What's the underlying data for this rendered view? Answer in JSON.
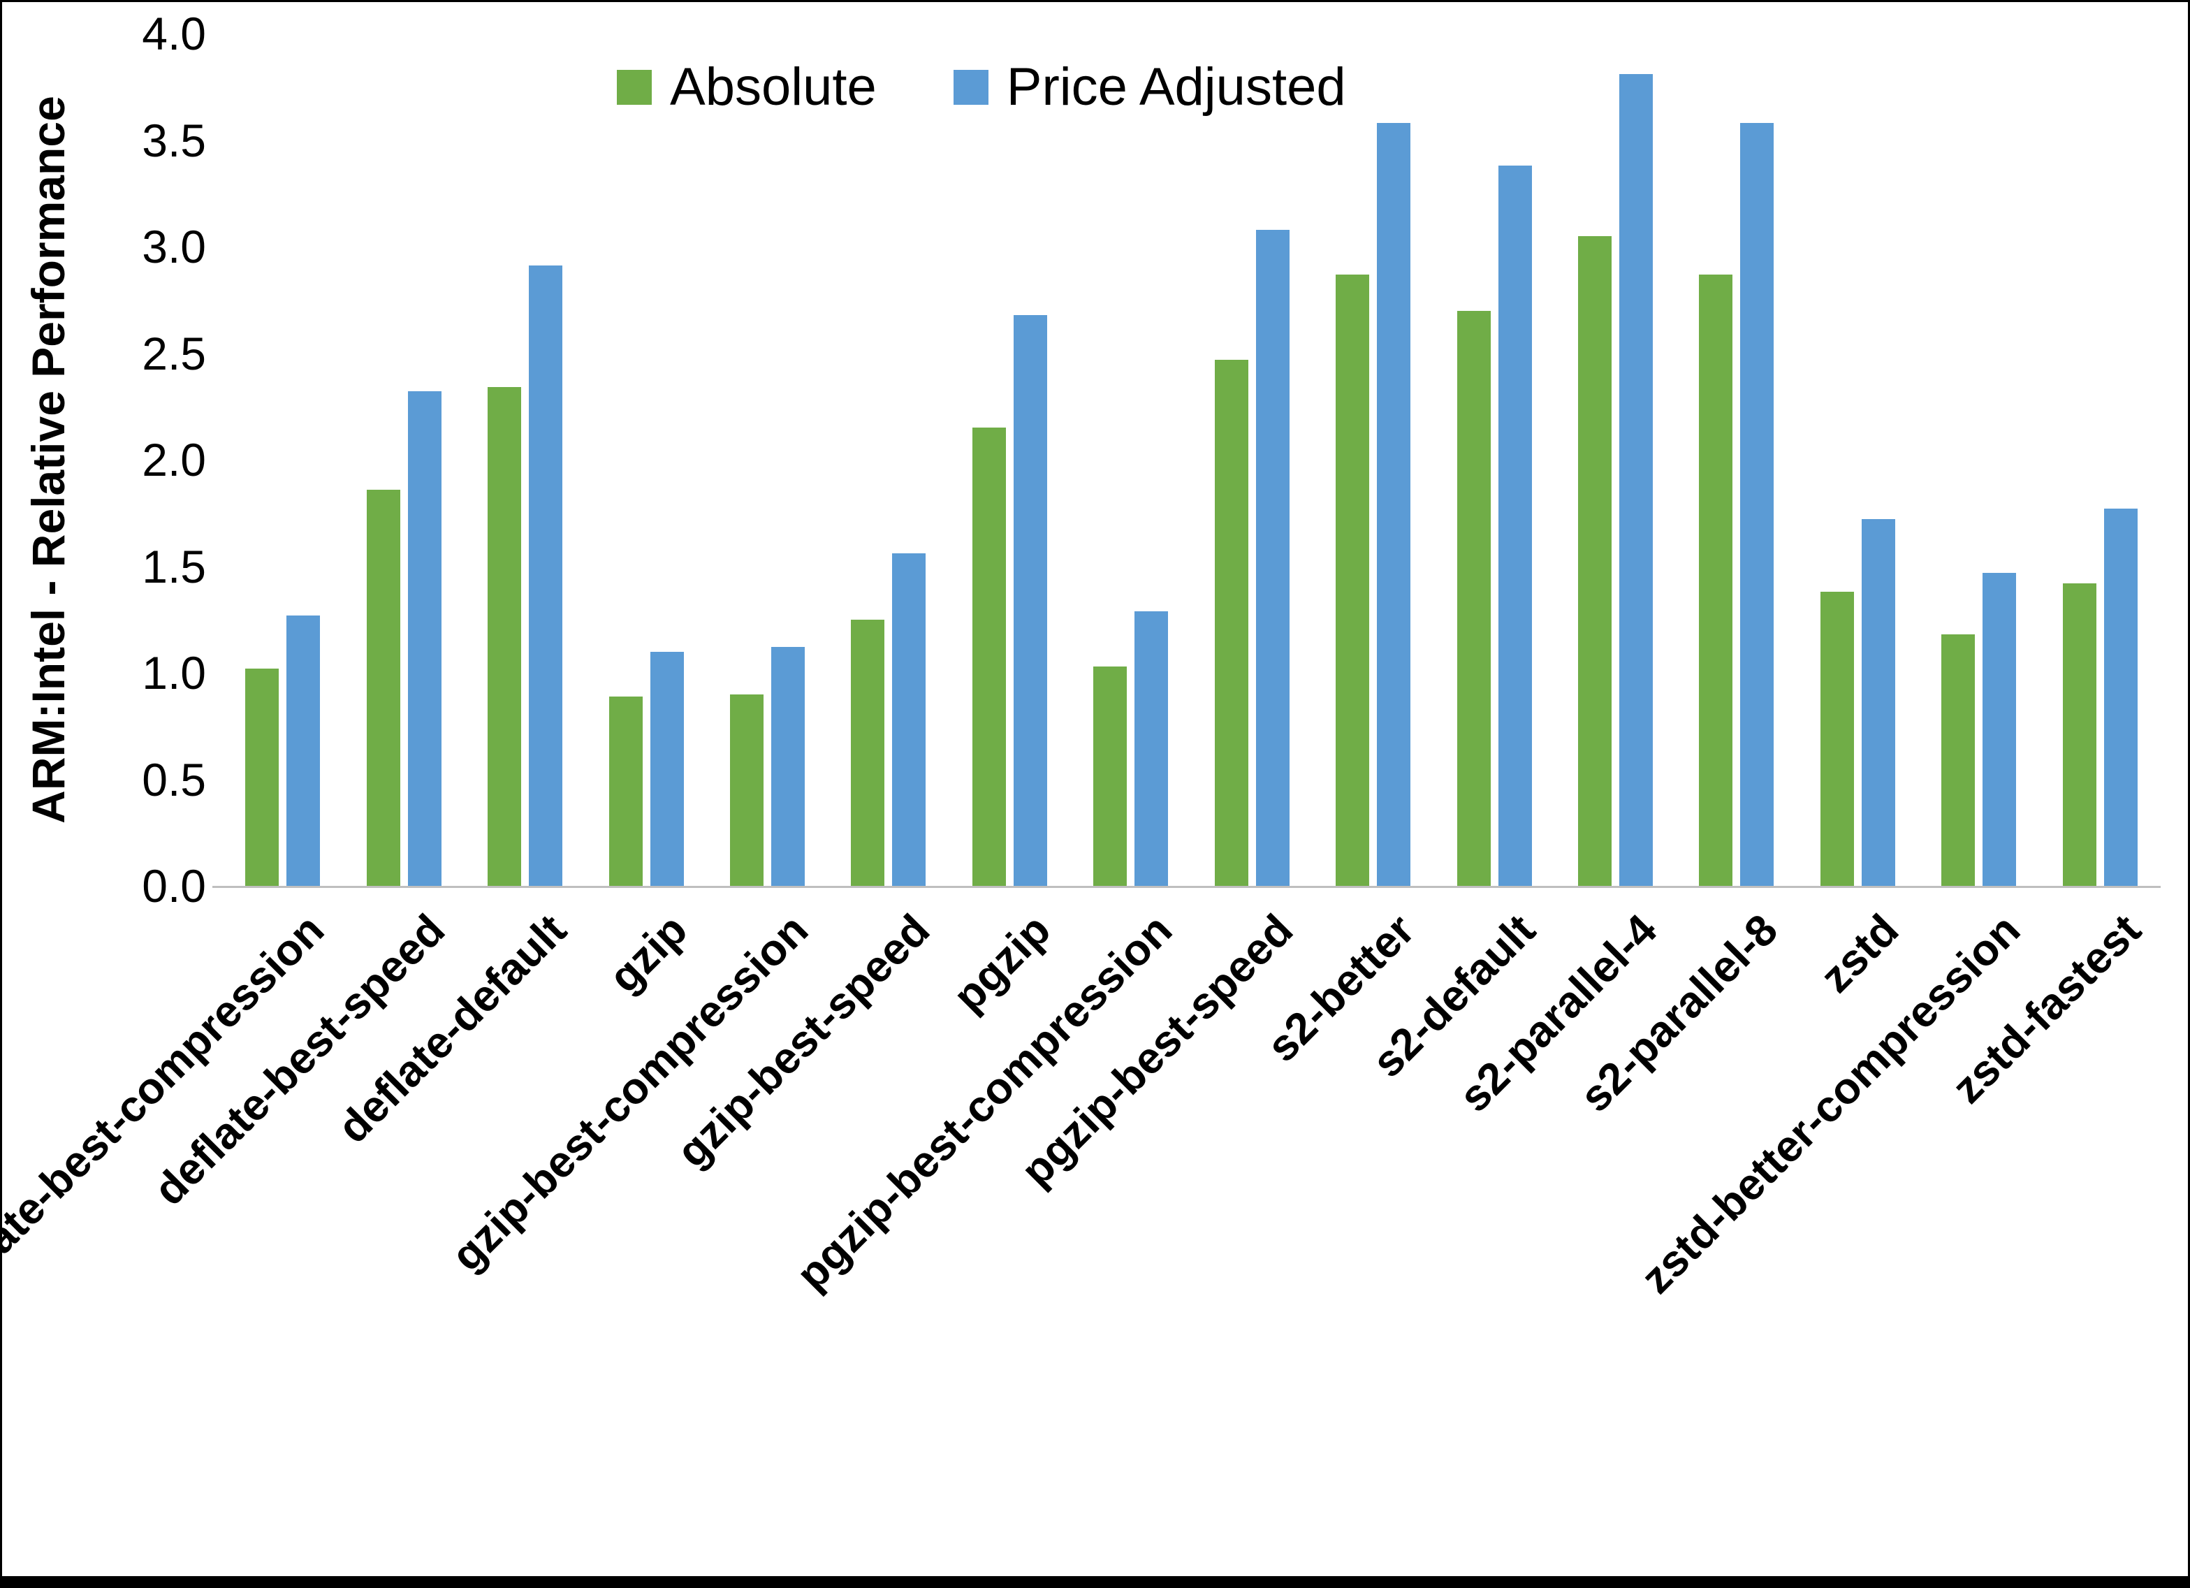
{
  "chart_data": {
    "type": "bar",
    "title": "",
    "xlabel": "",
    "ylabel": "ARM:Intel - Relative Performance",
    "ylim": [
      0.0,
      4.0
    ],
    "ytick_labels": [
      "0.0",
      "0.5",
      "1.0",
      "1.5",
      "2.0",
      "2.5",
      "3.0",
      "3.5",
      "4.0"
    ],
    "grid": false,
    "legend_position": "top-center",
    "categories": [
      "deflate-best-compression",
      "deflate-best-speed",
      "deflate-default",
      "gzip",
      "gzip-best-compression",
      "gzip-best-speed",
      "pgzip",
      "pgzip-best-compression",
      "pgzip-best-speed",
      "s2-better",
      "s2-default",
      "s2-parallel-4",
      "s2-parallel-8",
      "zstd",
      "zstd-better-compression",
      "zstd-fastest"
    ],
    "series": [
      {
        "name": "Absolute",
        "color": "#70AD47",
        "values": [
          1.02,
          1.86,
          2.34,
          0.89,
          0.9,
          1.25,
          2.15,
          1.03,
          2.47,
          2.87,
          2.7,
          3.05,
          2.87,
          1.38,
          1.18,
          1.42
        ]
      },
      {
        "name": "Price Adjusted",
        "color": "#5B9BD5",
        "values": [
          1.27,
          2.32,
          2.91,
          1.1,
          1.12,
          1.56,
          2.68,
          1.29,
          3.08,
          3.58,
          3.38,
          3.81,
          3.58,
          1.72,
          1.47,
          1.77
        ]
      }
    ],
    "axis_line_color": "#BFBFBF",
    "frame_color": "#000000"
  }
}
